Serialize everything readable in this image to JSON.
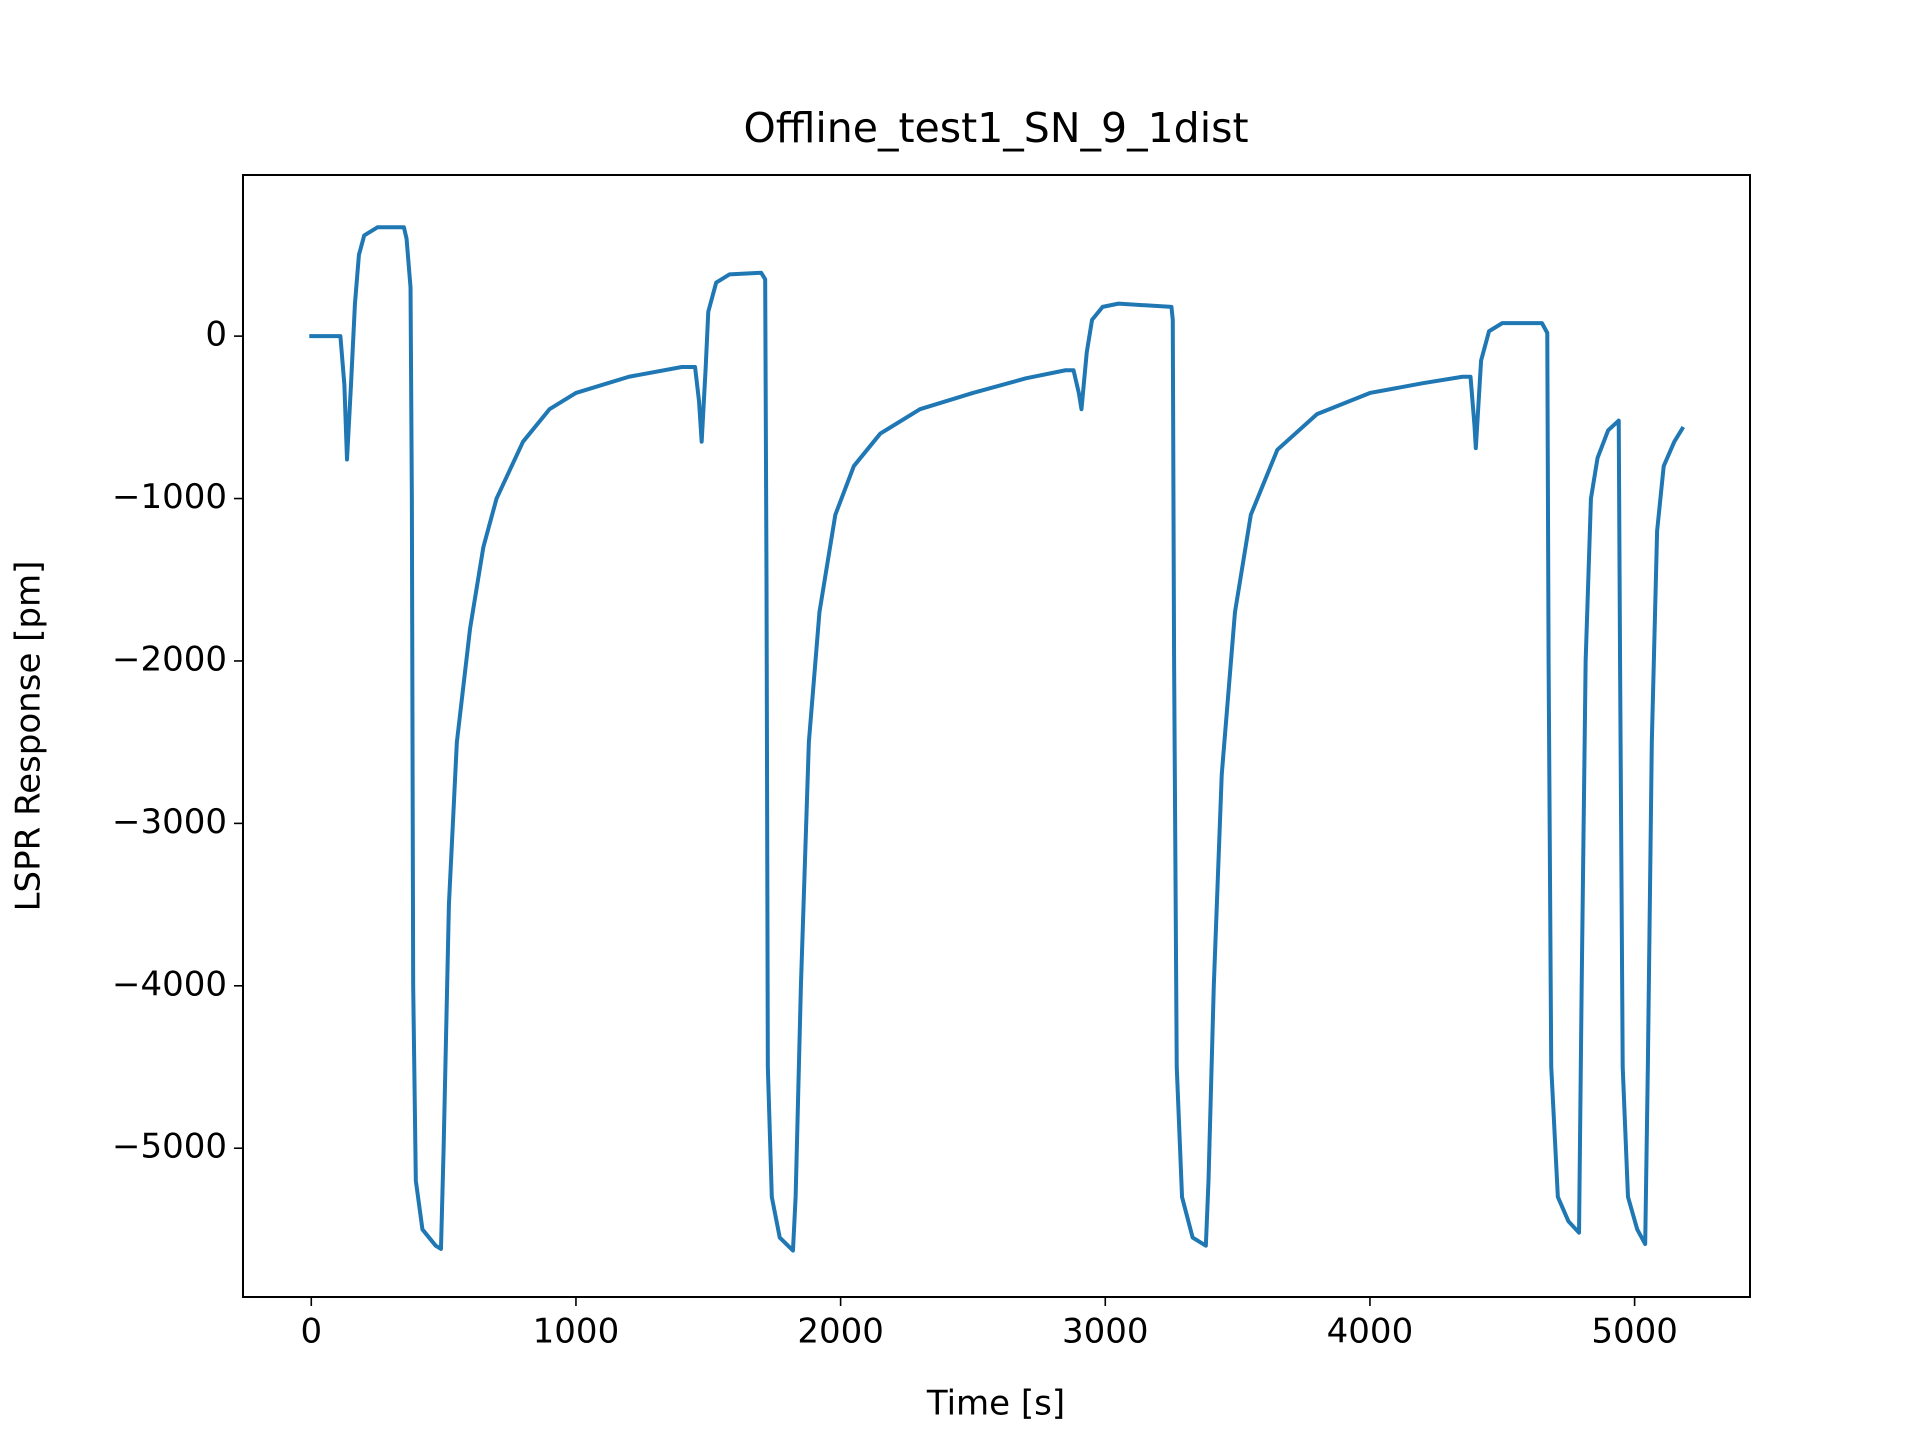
{
  "chart_data": {
    "type": "line",
    "title": "Offline_test1_SN_9_1dist",
    "xlabel": "Time [s]",
    "ylabel": "LSPR Response [pm]",
    "xlim": [
      -258,
      5436
    ],
    "ylim": [
      -5916,
      992
    ],
    "xticks": [
      0,
      1000,
      2000,
      3000,
      4000,
      5000
    ],
    "yticks": [
      {
        "value": -5000,
        "label": "−5000"
      },
      {
        "value": -4000,
        "label": "−4000"
      },
      {
        "value": -3000,
        "label": "−3000"
      },
      {
        "value": -2000,
        "label": "−2000"
      },
      {
        "value": -1000,
        "label": "−1000"
      },
      0
    ],
    "series": [
      {
        "color": "#1f77b4",
        "x": [
          0,
          110,
          125,
          135,
          150,
          165,
          180,
          200,
          250,
          350,
          360,
          375,
          380,
          385,
          395,
          420,
          470,
          490,
          500,
          520,
          550,
          600,
          650,
          700,
          800,
          900,
          1000,
          1200,
          1400,
          1450,
          1465,
          1475,
          1490,
          1500,
          1530,
          1580,
          1700,
          1715,
          1720,
          1725,
          1740,
          1770,
          1820,
          1830,
          1850,
          1880,
          1920,
          1980,
          2050,
          2150,
          2300,
          2500,
          2700,
          2850,
          2880,
          2900,
          2910,
          2930,
          2950,
          2990,
          3050,
          3250,
          3255,
          3260,
          3270,
          3290,
          3330,
          3380,
          3390,
          3410,
          3440,
          3490,
          3550,
          3650,
          3800,
          4000,
          4200,
          4350,
          4380,
          4395,
          4400,
          4420,
          4450,
          4500,
          4650,
          4670,
          4675,
          4685,
          4710,
          4750,
          4790,
          4800,
          4815,
          4835,
          4860,
          4900,
          4940,
          4945,
          4955,
          4975,
          5010,
          5040,
          5050,
          5065,
          5085,
          5110,
          5150,
          5180
        ],
        "values": [
          0,
          0,
          -300,
          -760,
          -300,
          200,
          500,
          620,
          670,
          670,
          600,
          300,
          -1000,
          -4000,
          -5200,
          -5500,
          -5600,
          -5620,
          -5000,
          -3500,
          -2500,
          -1800,
          -1300,
          -1000,
          -650,
          -450,
          -350,
          -250,
          -190,
          -190,
          -400,
          -650,
          -200,
          150,
          330,
          380,
          390,
          350,
          -1500,
          -4500,
          -5300,
          -5550,
          -5630,
          -5300,
          -4000,
          -2500,
          -1700,
          -1100,
          -800,
          -600,
          -450,
          -350,
          -260,
          -210,
          -210,
          -350,
          -450,
          -100,
          100,
          180,
          200,
          180,
          100,
          -2000,
          -4500,
          -5300,
          -5550,
          -5600,
          -5200,
          -4000,
          -2700,
          -1700,
          -1100,
          -700,
          -480,
          -350,
          -290,
          -250,
          -250,
          -550,
          -690,
          -150,
          30,
          80,
          80,
          20,
          -2000,
          -4500,
          -5300,
          -5450,
          -5520,
          -4000,
          -2000,
          -1000,
          -750,
          -580,
          -520,
          -2000,
          -4500,
          -5300,
          -5500,
          -5590,
          -4500,
          -2500,
          -1200,
          -800,
          -650,
          -570
        ]
      }
    ]
  }
}
